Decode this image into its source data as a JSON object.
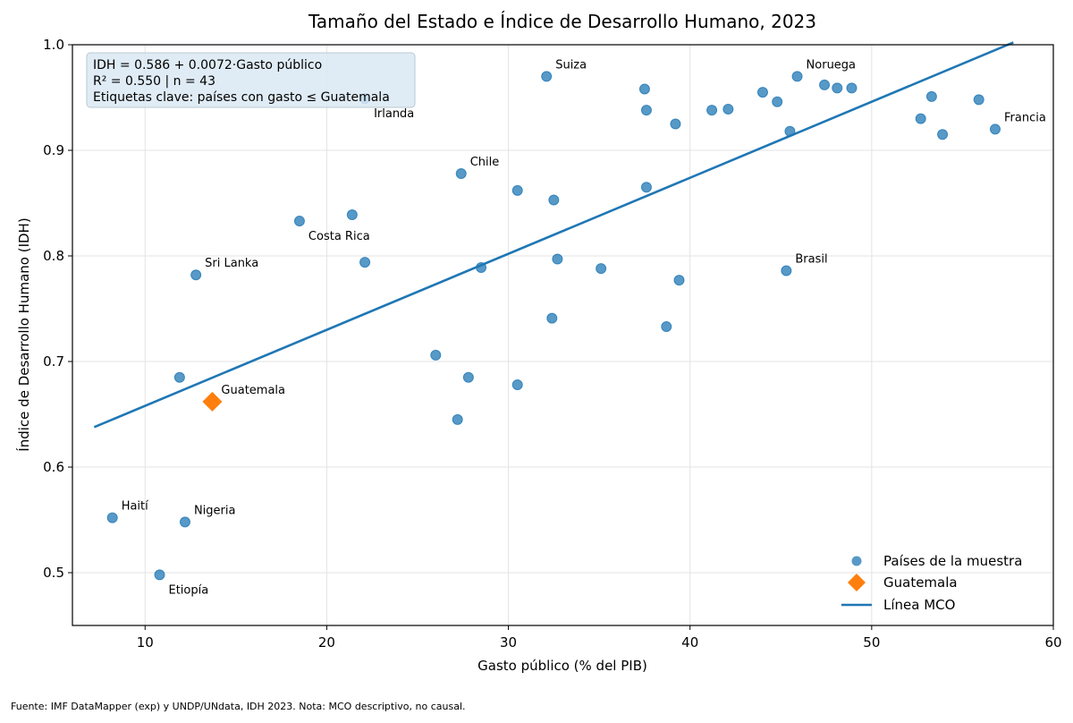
{
  "chart_data": {
    "type": "scatter",
    "title": "Tamaño del Estado e Índice de Desarrollo Humano, 2023",
    "xlabel": "Gasto público (% del PIB)",
    "ylabel": "Índice de Desarrollo Humano (IDH)",
    "xlim": [
      6,
      60
    ],
    "ylim": [
      0.45,
      1.0
    ],
    "xticks": [
      10,
      20,
      30,
      40,
      50,
      60
    ],
    "yticks": [
      0.5,
      0.6,
      0.7,
      0.8,
      0.9,
      1.0
    ],
    "grid": true,
    "stats_box": [
      "IDH = 0.586 + 0.0072·Gasto público",
      "R² = 0.550 | n = 43",
      "Etiquetas clave: países con gasto ≤ Guatemala"
    ],
    "regression": {
      "intercept": 0.586,
      "slope": 0.0072,
      "x_range": [
        7.2,
        57.8
      ]
    },
    "series": [
      {
        "name": "Países de la muestra",
        "color": "#1f77b4",
        "points": [
          {
            "x": 8.2,
            "y": 0.552,
            "label": "Haití"
          },
          {
            "x": 10.8,
            "y": 0.498,
            "label": "Etiopía"
          },
          {
            "x": 11.9,
            "y": 0.685,
            "label": ""
          },
          {
            "x": 12.2,
            "y": 0.548,
            "label": "Nigeria"
          },
          {
            "x": 12.8,
            "y": 0.782,
            "label": "Sri Lanka"
          },
          {
            "x": 18.5,
            "y": 0.833,
            "label": "Costa Rica"
          },
          {
            "x": 21.4,
            "y": 0.839,
            "label": ""
          },
          {
            "x": 22.1,
            "y": 0.949,
            "label": "Irlanda"
          },
          {
            "x": 22.1,
            "y": 0.794,
            "label": ""
          },
          {
            "x": 26.0,
            "y": 0.706,
            "label": ""
          },
          {
            "x": 27.2,
            "y": 0.645,
            "label": ""
          },
          {
            "x": 27.4,
            "y": 0.878,
            "label": "Chile"
          },
          {
            "x": 27.8,
            "y": 0.685,
            "label": ""
          },
          {
            "x": 28.5,
            "y": 0.789,
            "label": ""
          },
          {
            "x": 30.5,
            "y": 0.862,
            "label": ""
          },
          {
            "x": 30.5,
            "y": 0.678,
            "label": ""
          },
          {
            "x": 32.1,
            "y": 0.97,
            "label": "Suiza"
          },
          {
            "x": 32.4,
            "y": 0.741,
            "label": ""
          },
          {
            "x": 32.5,
            "y": 0.853,
            "label": ""
          },
          {
            "x": 32.7,
            "y": 0.797,
            "label": ""
          },
          {
            "x": 35.1,
            "y": 0.788,
            "label": ""
          },
          {
            "x": 37.5,
            "y": 0.958,
            "label": ""
          },
          {
            "x": 37.6,
            "y": 0.938,
            "label": ""
          },
          {
            "x": 37.6,
            "y": 0.865,
            "label": ""
          },
          {
            "x": 38.7,
            "y": 0.733,
            "label": ""
          },
          {
            "x": 39.2,
            "y": 0.925,
            "label": ""
          },
          {
            "x": 39.4,
            "y": 0.777,
            "label": ""
          },
          {
            "x": 41.2,
            "y": 0.938,
            "label": ""
          },
          {
            "x": 42.1,
            "y": 0.939,
            "label": ""
          },
          {
            "x": 44.0,
            "y": 0.955,
            "label": ""
          },
          {
            "x": 44.8,
            "y": 0.946,
            "label": ""
          },
          {
            "x": 45.3,
            "y": 0.786,
            "label": "Brasil"
          },
          {
            "x": 45.5,
            "y": 0.918,
            "label": ""
          },
          {
            "x": 45.9,
            "y": 0.97,
            "label": "Noruega"
          },
          {
            "x": 47.4,
            "y": 0.962,
            "label": ""
          },
          {
            "x": 48.1,
            "y": 0.959,
            "label": ""
          },
          {
            "x": 48.9,
            "y": 0.959,
            "label": ""
          },
          {
            "x": 52.7,
            "y": 0.93,
            "label": ""
          },
          {
            "x": 53.3,
            "y": 0.951,
            "label": ""
          },
          {
            "x": 53.9,
            "y": 0.915,
            "label": ""
          },
          {
            "x": 55.9,
            "y": 0.948,
            "label": ""
          },
          {
            "x": 56.8,
            "y": 0.92,
            "label": "Francia"
          }
        ]
      },
      {
        "name": "Guatemala",
        "color": "#ff7f0e",
        "points": [
          {
            "x": 13.7,
            "y": 0.662,
            "label": "Guatemala"
          }
        ]
      }
    ],
    "legend": {
      "placement": "lower-right",
      "entries": [
        {
          "label": "Países de la muestra",
          "marker": "circle",
          "color": "#1f77b4"
        },
        {
          "label": "Guatemala",
          "marker": "diamond",
          "color": "#ff7f0e"
        },
        {
          "label": "Línea MCO",
          "marker": "line",
          "color": "#1f77b4"
        }
      ]
    },
    "source": "Fuente: IMF DataMapper (exp) y UNDP/UNdata, IDH 2023. Nota: MCO descriptivo, no causal."
  }
}
